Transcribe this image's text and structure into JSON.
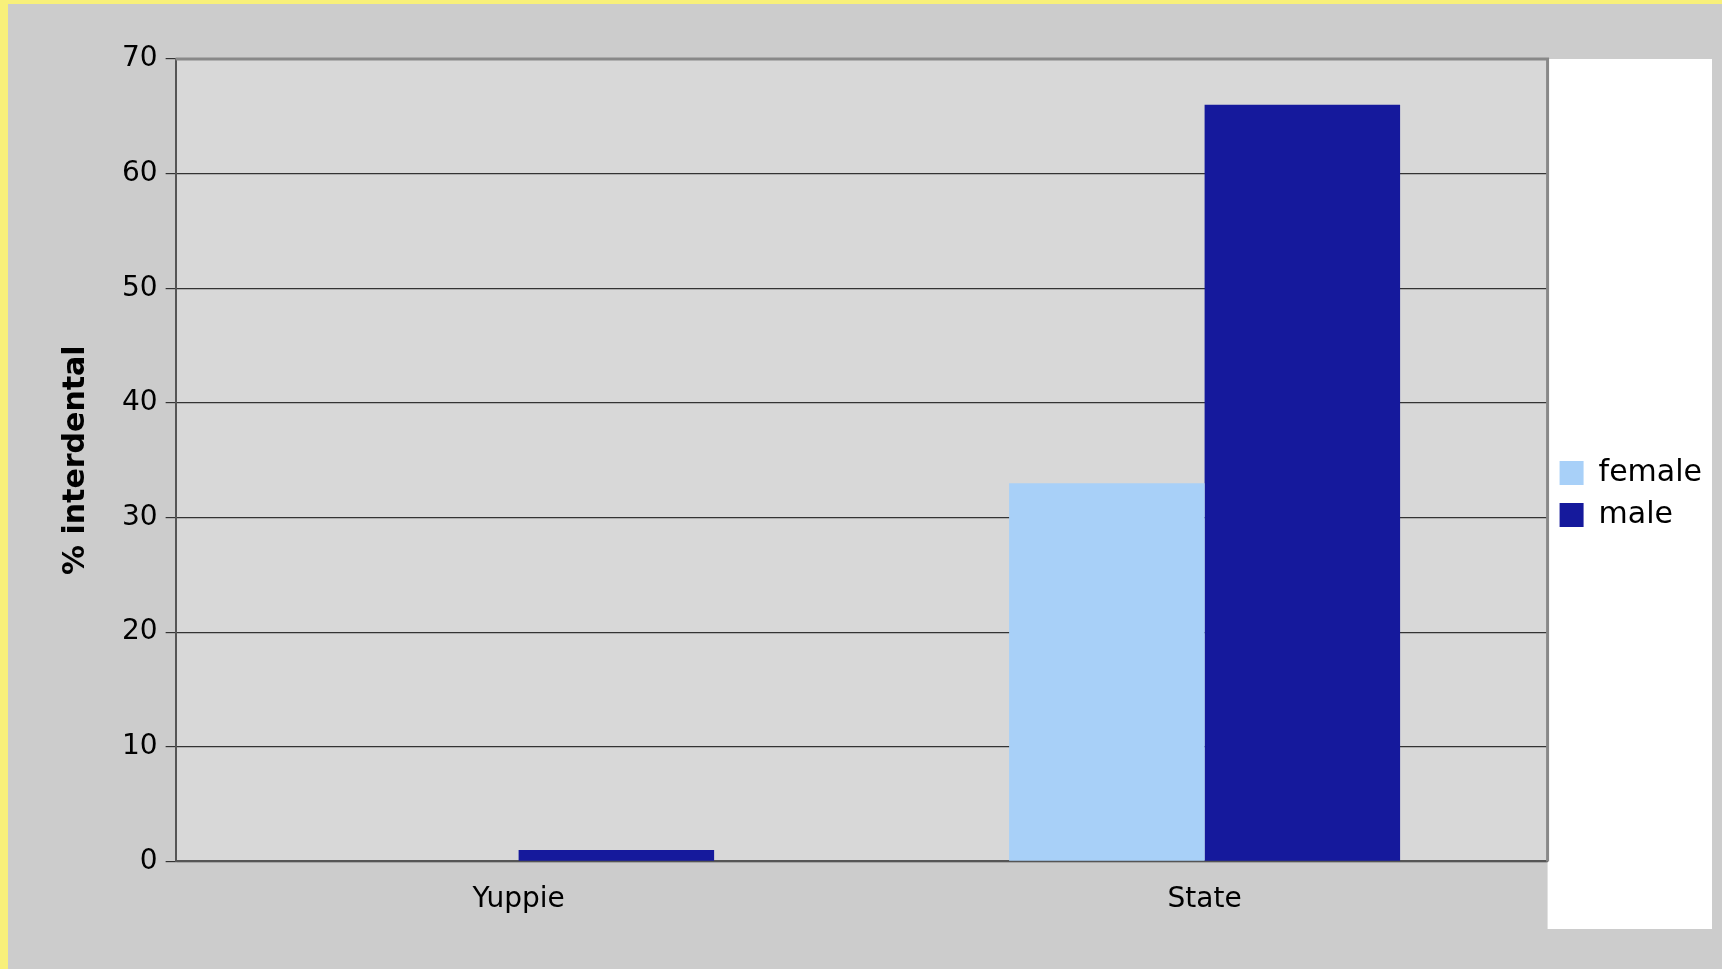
{
  "chart_data": {
    "type": "bar",
    "ylabel": "% interdental",
    "categories": [
      "Yuppie",
      "State"
    ],
    "series": [
      {
        "name": "female",
        "color": "#a8d0f8",
        "values": [
          0,
          33
        ]
      },
      {
        "name": "male",
        "color": "#15199c",
        "values": [
          1,
          66
        ]
      }
    ],
    "ylim": [
      0,
      70
    ],
    "yticks": [
      0,
      10,
      20,
      30,
      40,
      50,
      60,
      70
    ],
    "grid": "y",
    "legend": "right"
  }
}
